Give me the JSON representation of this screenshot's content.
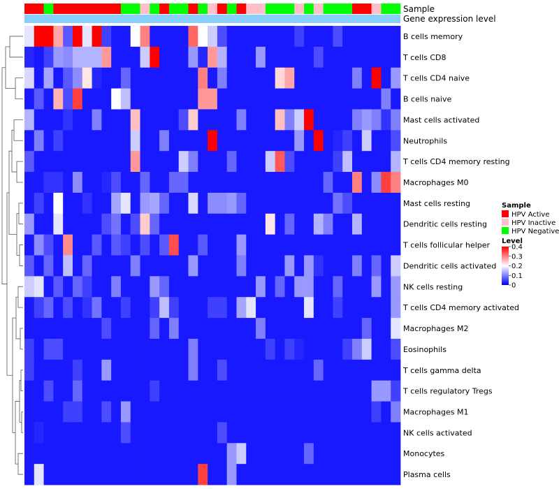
{
  "chart_data": {
    "type": "heatmap",
    "annotation_tracks": [
      {
        "name": "Sample",
        "label": "Sample"
      },
      {
        "name": "Gene expression level",
        "label": "Gene expression level"
      }
    ],
    "columns": {
      "sample": [
        "A",
        "A",
        "N",
        "A",
        "A",
        "A",
        "A",
        "A",
        "A",
        "A",
        "N",
        "N",
        "I",
        "N",
        "A",
        "N",
        "N",
        "A",
        "N",
        "I",
        "A",
        "N",
        "A",
        "I",
        "I",
        "N",
        "N",
        "N",
        "I",
        "N",
        "I",
        "N",
        "N",
        "N",
        "A",
        "A",
        "I",
        "N",
        "N"
      ],
      "sample_codes": {
        "A": "HPV Active",
        "I": "HPV Inactive",
        "N": "HPV Negative"
      }
    },
    "rows": [
      "B cells memory",
      "T cells CD8",
      "T cells CD4 naive",
      "B cells naive",
      "Mast cells activated",
      "Neutrophils",
      "T cells CD4 memory resting",
      "Macrophages M0",
      "Mast cells resting",
      "Dendritic cells resting",
      "T cells follicular helper",
      "Dendritic cells activated",
      "NK cells resting",
      "T cells CD4 memory activated",
      "Macrophages M2",
      "Eosinophils",
      "T cells gamma delta",
      "T cells regulatory  Tregs",
      "Macrophages M1",
      "NK cells activated",
      "Monocytes",
      "Plasma cells"
    ],
    "values": [
      [
        0.18,
        0.4,
        0.4,
        0.27,
        0.07,
        0.4,
        0.18,
        0.4,
        0.05,
        0.02,
        0.02,
        0.2,
        0.3,
        0.02,
        0.02,
        0.02,
        0.02,
        0.32,
        0.2,
        0.16,
        0.06,
        0.02,
        0.02,
        0.02,
        0.02,
        0.02,
        0.02,
        0.02,
        0.05,
        0.02,
        0.02,
        0.02,
        0.06,
        0.02,
        0.02,
        0.02,
        0.02,
        0.02,
        0.02
      ],
      [
        0.03,
        0.02,
        0.05,
        0.12,
        0.11,
        0.14,
        0.14,
        0.14,
        0.28,
        0.02,
        0.02,
        0.02,
        0.16,
        0.4,
        0.02,
        0.02,
        0.02,
        0.12,
        0.03,
        0.28,
        0.14,
        0.02,
        0.02,
        0.02,
        0.12,
        0.02,
        0.02,
        0.02,
        0.02,
        0.02,
        0.06,
        0.02,
        0.02,
        0.02,
        0.02,
        0.02,
        0.02,
        0.02,
        0.02
      ],
      [
        0.17,
        0.02,
        0.13,
        0.02,
        0.07,
        0.11,
        0.22,
        0.03,
        0.02,
        0.02,
        0.08,
        0.02,
        0.02,
        0.02,
        0.02,
        0.02,
        0.02,
        0.02,
        0.3,
        0.02,
        0.1,
        0.02,
        0.02,
        0.02,
        0.02,
        0.02,
        0.23,
        0.27,
        0.02,
        0.02,
        0.02,
        0.02,
        0.02,
        0.02,
        0.1,
        0.02,
        0.4,
        0.02,
        0.12
      ],
      [
        0.02,
        0.07,
        0.02,
        0.26,
        0.06,
        0.35,
        0.02,
        0.02,
        0.02,
        0.2,
        0.15,
        0.02,
        0.02,
        0.02,
        0.02,
        0.02,
        0.02,
        0.02,
        0.28,
        0.28,
        0.02,
        0.02,
        0.02,
        0.02,
        0.02,
        0.02,
        0.02,
        0.02,
        0.02,
        0.02,
        0.02,
        0.02,
        0.02,
        0.02,
        0.02,
        0.02,
        0.02,
        0.1,
        0.02
      ],
      [
        0.14,
        0.02,
        0.02,
        0.02,
        0.04,
        0.02,
        0.02,
        0.1,
        0.02,
        0.02,
        0.02,
        0.25,
        0.02,
        0.02,
        0.02,
        0.02,
        0.06,
        0.24,
        0.02,
        0.02,
        0.02,
        0.02,
        0.1,
        0.02,
        0.02,
        0.02,
        0.25,
        0.1,
        0.16,
        0.4,
        0.02,
        0.02,
        0.02,
        0.02,
        0.1,
        0.12,
        0.1,
        0.04,
        0.1
      ],
      [
        0.02,
        0.1,
        0.02,
        0.05,
        0.02,
        0.02,
        0.02,
        0.02,
        0.02,
        0.02,
        0.02,
        0.16,
        0.02,
        0.02,
        0.1,
        0.02,
        0.02,
        0.02,
        0.02,
        0.4,
        0.02,
        0.02,
        0.02,
        0.02,
        0.02,
        0.02,
        0.02,
        0.02,
        0.12,
        0.02,
        0.4,
        0.02,
        0.03,
        0.05,
        0.02,
        0.16,
        0.02,
        0.02,
        0.06
      ],
      [
        0.07,
        0.02,
        0.02,
        0.02,
        0.02,
        0.02,
        0.02,
        0.02,
        0.02,
        0.02,
        0.02,
        0.28,
        0.02,
        0.02,
        0.02,
        0.02,
        0.16,
        0.1,
        0.02,
        0.02,
        0.02,
        0.08,
        0.02,
        0.02,
        0.02,
        0.16,
        0.33,
        0.06,
        0.02,
        0.02,
        0.02,
        0.02,
        0.05,
        0.15,
        0.02,
        0.02,
        0.02,
        0.02,
        0.14
      ],
      [
        0.02,
        0.02,
        0.04,
        0.04,
        0.02,
        0.11,
        0.02,
        0.02,
        0.03,
        0.06,
        0.02,
        0.02,
        0.08,
        0.02,
        0.02,
        0.08,
        0.08,
        0.02,
        0.02,
        0.02,
        0.02,
        0.02,
        0.02,
        0.02,
        0.02,
        0.02,
        0.02,
        0.02,
        0.02,
        0.02,
        0.02,
        0.08,
        0.02,
        0.02,
        0.3,
        0.02,
        0.11,
        0.35,
        0.3
      ],
      [
        0.02,
        0.05,
        0.02,
        0.2,
        0.02,
        0.02,
        0.04,
        0.02,
        0.02,
        0.13,
        0.18,
        0.02,
        0.12,
        0.13,
        0.08,
        0.02,
        0.02,
        0.17,
        0.02,
        0.11,
        0.11,
        0.12,
        0.08,
        0.02,
        0.02,
        0.02,
        0.02,
        0.02,
        0.02,
        0.02,
        0.02,
        0.02,
        0.09,
        0.06,
        0.02,
        0.02,
        0.02,
        0.02,
        0.02
      ],
      [
        0.12,
        0.02,
        0.02,
        0.18,
        0.02,
        0.02,
        0.02,
        0.02,
        0.06,
        0.09,
        0.02,
        0.06,
        0.24,
        0.08,
        0.02,
        0.02,
        0.02,
        0.02,
        0.02,
        0.02,
        0.02,
        0.02,
        0.02,
        0.02,
        0.02,
        0.22,
        0.02,
        0.08,
        0.02,
        0.02,
        0.14,
        0.1,
        0.02,
        0.02,
        0.14,
        0.02,
        0.02,
        0.02,
        0.02
      ],
      [
        0.02,
        0.11,
        0.06,
        0.02,
        0.29,
        0.02,
        0.02,
        0.07,
        0.02,
        0.07,
        0.05,
        0.02,
        0.06,
        0.02,
        0.07,
        0.34,
        0.02,
        0.02,
        0.07,
        0.02,
        0.02,
        0.02,
        0.12,
        0.02,
        0.02,
        0.02,
        0.02,
        0.02,
        0.02,
        0.02,
        0.02,
        0.02,
        0.02,
        0.02,
        0.02,
        0.02,
        0.02,
        0.02,
        0.02
      ],
      [
        0.07,
        0.02,
        0.08,
        0.02,
        0.15,
        0.02,
        0.08,
        0.02,
        0.02,
        0.02,
        0.02,
        0.1,
        0.02,
        0.02,
        0.02,
        0.02,
        0.02,
        0.12,
        0.02,
        0.02,
        0.02,
        0.02,
        0.1,
        0.02,
        0.02,
        0.02,
        0.02,
        0.12,
        0.02,
        0.12,
        0.04,
        0.02,
        0.02,
        0.02,
        0.1,
        0.02,
        0.08,
        0.02,
        0.16
      ],
      [
        0.16,
        0.18,
        0.02,
        0.07,
        0.02,
        0.08,
        0.05,
        0.02,
        0.02,
        0.1,
        0.02,
        0.02,
        0.02,
        0.12,
        0.08,
        0.02,
        0.02,
        0.02,
        0.02,
        0.02,
        0.02,
        0.02,
        0.02,
        0.02,
        0.12,
        0.02,
        0.08,
        0.02,
        0.12,
        0.12,
        0.02,
        0.02,
        0.08,
        0.02,
        0.02,
        0.02,
        0.12,
        0.02,
        0.12
      ],
      [
        0.02,
        0.05,
        0.08,
        0.02,
        0.06,
        0.02,
        0.04,
        0.09,
        0.02,
        0.02,
        0.05,
        0.02,
        0.02,
        0.05,
        0.15,
        0.05,
        0.02,
        0.02,
        0.02,
        0.05,
        0.05,
        0.02,
        0.13,
        0.18,
        0.02,
        0.02,
        0.02,
        0.02,
        0.02,
        0.18,
        0.02,
        0.02,
        0.05,
        0.02,
        0.02,
        0.02,
        0.02,
        0.02,
        0.12
      ],
      [
        0.02,
        0.02,
        0.02,
        0.02,
        0.02,
        0.02,
        0.02,
        0.02,
        0.06,
        0.02,
        0.02,
        0.02,
        0.02,
        0.08,
        0.02,
        0.1,
        0.02,
        0.02,
        0.02,
        0.02,
        0.02,
        0.02,
        0.02,
        0.02,
        0.1,
        0.02,
        0.02,
        0.02,
        0.02,
        0.02,
        0.02,
        0.02,
        0.02,
        0.02,
        0.02,
        0.08,
        0.02,
        0.02,
        0.18
      ],
      [
        0.05,
        0.02,
        0.06,
        0.06,
        0.02,
        0.02,
        0.02,
        0.02,
        0.02,
        0.02,
        0.02,
        0.02,
        0.02,
        0.02,
        0.02,
        0.02,
        0.02,
        0.1,
        0.02,
        0.02,
        0.02,
        0.02,
        0.02,
        0.02,
        0.02,
        0.05,
        0.02,
        0.05,
        0.03,
        0.02,
        0.02,
        0.02,
        0.02,
        0.05,
        0.1,
        0.16,
        0.02,
        0.02,
        0.06
      ],
      [
        0.05,
        0.02,
        0.02,
        0.02,
        0.02,
        0.05,
        0.02,
        0.02,
        0.12,
        0.02,
        0.02,
        0.02,
        0.02,
        0.02,
        0.02,
        0.02,
        0.02,
        0.1,
        0.02,
        0.02,
        0.06,
        0.02,
        0.02,
        0.02,
        0.02,
        0.02,
        0.02,
        0.02,
        0.02,
        0.02,
        0.08,
        0.02,
        0.02,
        0.02,
        0.02,
        0.02,
        0.02,
        0.02,
        0.02
      ],
      [
        0.02,
        0.02,
        0.06,
        0.02,
        0.02,
        0.08,
        0.02,
        0.02,
        0.02,
        0.02,
        0.02,
        0.02,
        0.02,
        0.05,
        0.02,
        0.02,
        0.02,
        0.02,
        0.02,
        0.02,
        0.02,
        0.02,
        0.02,
        0.02,
        0.02,
        0.02,
        0.02,
        0.02,
        0.02,
        0.02,
        0.02,
        0.02,
        0.02,
        0.02,
        0.02,
        0.02,
        0.12,
        0.12,
        0.05
      ],
      [
        0.02,
        0.02,
        0.02,
        0.02,
        0.05,
        0.05,
        0.02,
        0.02,
        0.06,
        0.02,
        0.12,
        0.02,
        0.02,
        0.02,
        0.02,
        0.02,
        0.02,
        0.02,
        0.02,
        0.02,
        0.02,
        0.02,
        0.02,
        0.02,
        0.02,
        0.02,
        0.02,
        0.02,
        0.02,
        0.02,
        0.02,
        0.02,
        0.02,
        0.02,
        0.02,
        0.02,
        0.05,
        0.02,
        0.1
      ],
      [
        0.02,
        0.03,
        0.02,
        0.02,
        0.02,
        0.02,
        0.02,
        0.02,
        0.02,
        0.02,
        0.06,
        0.02,
        0.02,
        0.02,
        0.02,
        0.02,
        0.02,
        0.02,
        0.02,
        0.02,
        0.06,
        0.02,
        0.02,
        0.02,
        0.02,
        0.02,
        0.02,
        0.02,
        0.02,
        0.02,
        0.02,
        0.02,
        0.02,
        0.02,
        0.02,
        0.02,
        0.02,
        0.02,
        0.02
      ],
      [
        0.02,
        0.02,
        0.02,
        0.02,
        0.02,
        0.02,
        0.02,
        0.02,
        0.02,
        0.02,
        0.02,
        0.02,
        0.02,
        0.02,
        0.02,
        0.02,
        0.02,
        0.02,
        0.02,
        0.02,
        0.02,
        0.12,
        0.16,
        0.02,
        0.02,
        0.02,
        0.02,
        0.02,
        0.02,
        0.08,
        0.02,
        0.02,
        0.02,
        0.02,
        0.02,
        0.02,
        0.02,
        0.02,
        0.02
      ],
      [
        0.02,
        0.18,
        0.02,
        0.02,
        0.02,
        0.02,
        0.02,
        0.02,
        0.02,
        0.02,
        0.02,
        0.02,
        0.02,
        0.02,
        0.02,
        0.02,
        0.02,
        0.02,
        0.35,
        0.02,
        0.02,
        0.12,
        0.02,
        0.02,
        0.02,
        0.02,
        0.02,
        0.02,
        0.02,
        0.02,
        0.02,
        0.02,
        0.02,
        0.02,
        0.02,
        0.02,
        0.02,
        0.02,
        0.02
      ]
    ],
    "color_scale": {
      "min": 0,
      "mid": 0.2,
      "max": 0.4,
      "low_color": "#0000ff",
      "mid_color": "#ffffff",
      "high_color": "#ff0000"
    },
    "legend": {
      "sample_title": "Sample",
      "sample_entries": [
        {
          "label": "HPV Active",
          "color": "#ff0000"
        },
        {
          "label": "HPV Inactive",
          "color": "#ffc0cb"
        },
        {
          "label": "HPV Negative",
          "color": "#00ff00"
        }
      ],
      "level_title": "Level",
      "level_ticks": [
        "0.4",
        "0.3",
        "0.2",
        "0.1",
        "0"
      ],
      "level_tick_values": [
        0.4,
        0.3,
        0.2,
        0.1,
        0
      ],
      "position": "right"
    },
    "gene_expression_color": "#87cefa"
  }
}
